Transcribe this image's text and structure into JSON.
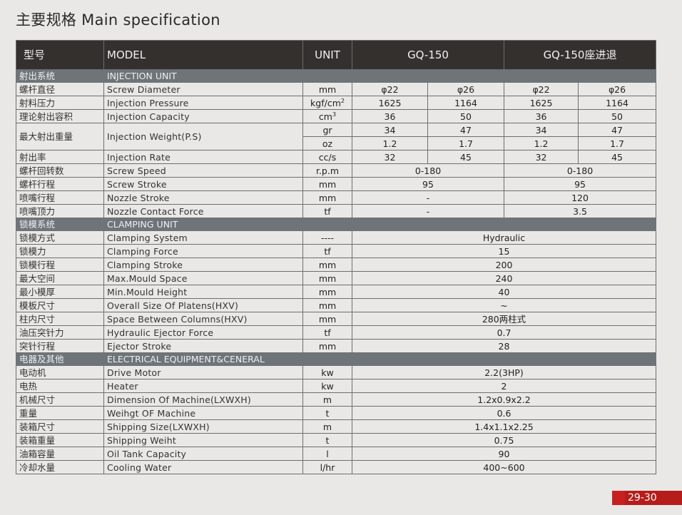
{
  "page": {
    "title": "主要规格 Main specification",
    "page_number": "29-30"
  },
  "header": {
    "cn": "型号",
    "en": "MODEL",
    "unit": "UNIT",
    "model_a": "GQ-150",
    "model_b": "GQ-150座进退"
  },
  "sections": {
    "injection": {
      "cn": "射出系统",
      "en": "INJECTION UNIT"
    },
    "clamping": {
      "cn": "锁模系统",
      "en": "CLAMPING UNIT"
    },
    "electrical": {
      "cn": "电器及其他",
      "en": "ELECTRICAL EQUIPMENT&CENERAL"
    }
  },
  "injection_rows": {
    "screw_diameter": {
      "cn": "螺杆直径",
      "en": "Screw Diameter",
      "unit": "mm",
      "v": [
        "φ22",
        "φ26",
        "φ22",
        "φ26"
      ]
    },
    "injection_pressure": {
      "cn": "射料压力",
      "en": "Injection Pressure",
      "unit_base": "kgf/cm",
      "unit_sup": "2",
      "v": [
        "1625",
        "1164",
        "1625",
        "1164"
      ]
    },
    "injection_capacity": {
      "cn": "理论射出容积",
      "en": "Injection Capacity",
      "unit_base": "cm",
      "unit_sup": "3",
      "v": [
        "36",
        "50",
        "36",
        "50"
      ]
    },
    "injection_weight": {
      "cn": "最大射出重量",
      "en": "Injection Weight(P.S)",
      "unit_gr": "gr",
      "v_gr": [
        "34",
        "47",
        "34",
        "47"
      ],
      "unit_oz": "oz",
      "v_oz": [
        "1.2",
        "1.7",
        "1.2",
        "1.7"
      ]
    },
    "injection_rate": {
      "cn": "射出率",
      "en": "Injection Rate",
      "unit": "cc/s",
      "v": [
        "32",
        "45",
        "32",
        "45"
      ]
    },
    "screw_speed": {
      "cn": "螺杆回转数",
      "en": "Screw Speed",
      "unit": "r.p.m",
      "a": "0-180",
      "b": "0-180"
    },
    "screw_stroke": {
      "cn": "螺杆行程",
      "en": "Screw Stroke",
      "unit": "mm",
      "a": "95",
      "b": "95"
    },
    "nozzle_stroke": {
      "cn": "喷嘴行程",
      "en": "Nozzle Stroke",
      "unit": "mm",
      "a": "-",
      "b": "120"
    },
    "nozzle_force": {
      "cn": "喷嘴顶力",
      "en": "Nozzle Contact Force",
      "unit": "tf",
      "a": "-",
      "b": "3.5"
    }
  },
  "clamping_rows": [
    {
      "cn": "锁模方式",
      "en": "Clamping System",
      "unit": "----",
      "value": "Hydraulic"
    },
    {
      "cn": "锁模力",
      "en": "Clamping Force",
      "unit": "tf",
      "value": "15"
    },
    {
      "cn": "锁模行程",
      "en": "Clamping Stroke",
      "unit": "mm",
      "value": "200"
    },
    {
      "cn": "最大空间",
      "en": "Max.Mould Space",
      "unit": "mm",
      "value": "240"
    },
    {
      "cn": "最小模厚",
      "en": "Min.Mould Height",
      "unit": "mm",
      "value": "40"
    },
    {
      "cn": "模板尺寸",
      "en": "Overall Size Of Platens(HXV)",
      "unit": "mm",
      "value": "~"
    },
    {
      "cn": "柱内尺寸",
      "en": "Space Between Columns(HXV)",
      "unit": "mm",
      "value": "280两柱式"
    },
    {
      "cn": "油压突针力",
      "en": "Hydraulic Ejector Force",
      "unit": "tf",
      "value": "0.7"
    },
    {
      "cn": "突针行程",
      "en": "Ejector Stroke",
      "unit": "mm",
      "value": "28"
    }
  ],
  "electrical_rows": [
    {
      "cn": "电动机",
      "en": "Drive Motor",
      "unit": "kw",
      "value": "2.2(3HP)"
    },
    {
      "cn": "电热",
      "en": "Heater",
      "unit": "kw",
      "value": "2"
    },
    {
      "cn": "机械尺寸",
      "en": "Dimension Of Machine(LXWXH)",
      "unit": "m",
      "value": "1.2x0.9x2.2"
    },
    {
      "cn": "重量",
      "en": "Weihgt OF Machine",
      "unit": "t",
      "value": "0.6"
    },
    {
      "cn": "装箱尺寸",
      "en": "Shipping Size(LXWXH)",
      "unit": "m",
      "value": "1.4x1.1x2.25"
    },
    {
      "cn": "装箱重量",
      "en": "Shipping Weiht",
      "unit": "t",
      "value": "0.75"
    },
    {
      "cn": "油箱容量",
      "en": "Oil Tank Capacity",
      "unit": "l",
      "value": "90"
    },
    {
      "cn": "冷却水量",
      "en": "Cooling Water",
      "unit": "l/hr",
      "value": "400~600"
    }
  ]
}
